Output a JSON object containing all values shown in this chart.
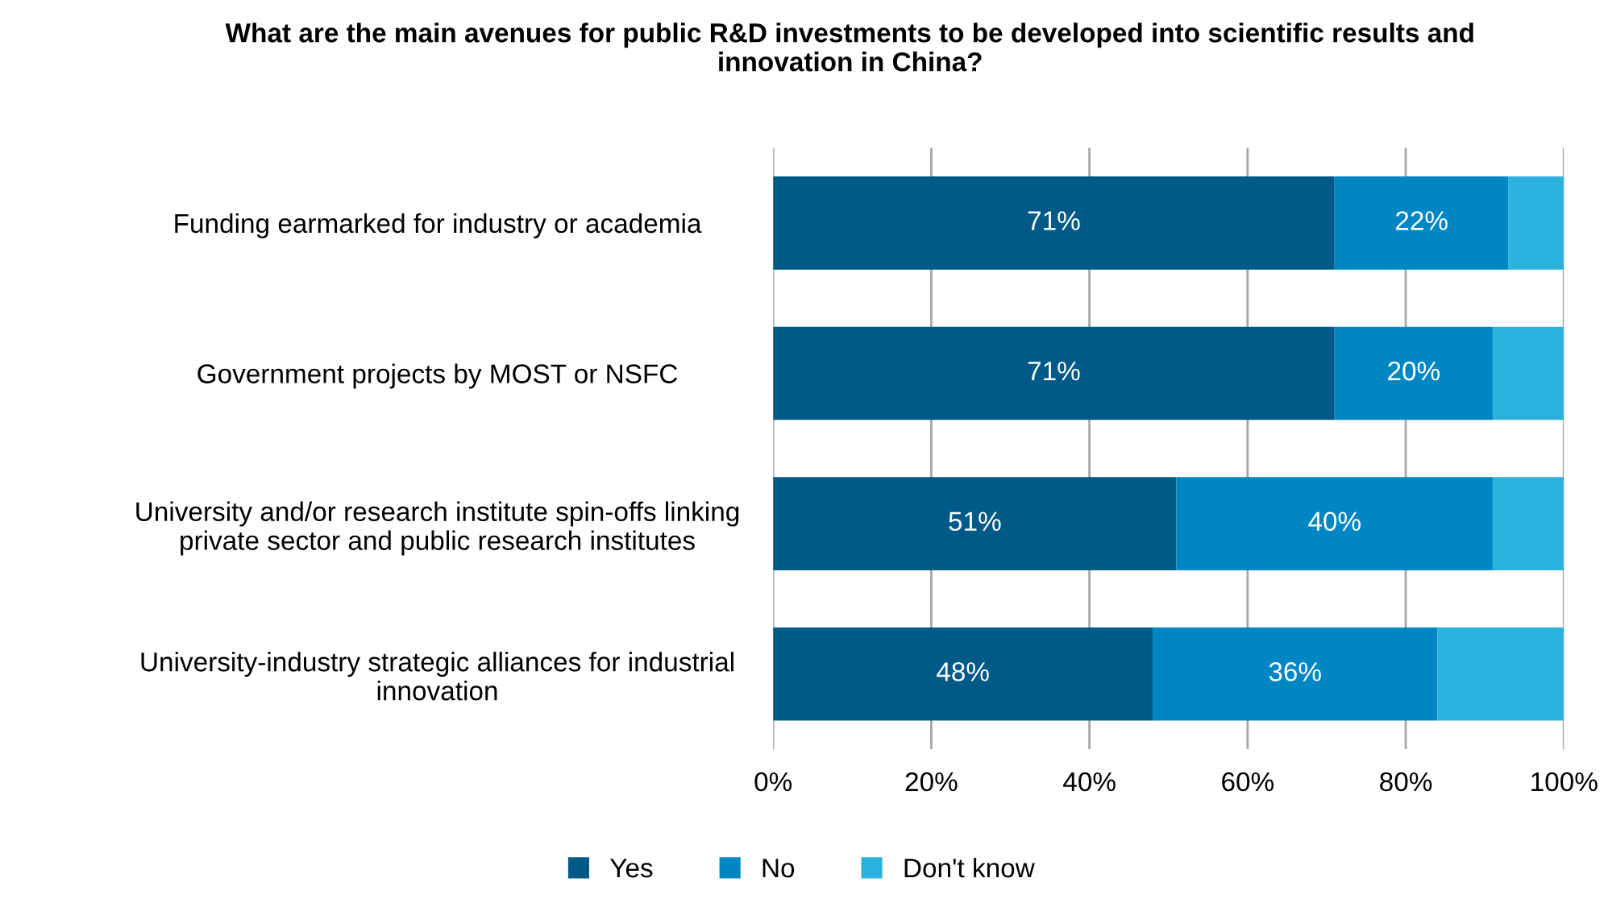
{
  "chart_data": {
    "type": "bar",
    "orientation": "horizontal",
    "stacked": true,
    "title": "What are the main avenues for public R&D investments to be developed into scientific results and\ninnovation in China?",
    "categories": [
      "Funding earmarked for industry or academia",
      "Government projects by MOST or NSFC",
      "University and/or research institute spin-offs linking\nprivate sector and public research institutes",
      "University-industry strategic alliances for industrial\ninnovation"
    ],
    "series": [
      {
        "name": "Yes",
        "color": "#005a87",
        "values": [
          71,
          71,
          51,
          48
        ],
        "value_labels": [
          "71%",
          "71%",
          "51%",
          "48%"
        ]
      },
      {
        "name": "No",
        "color": "#0087c3",
        "values": [
          22,
          20,
          40,
          36
        ],
        "value_labels": [
          "22%",
          "20%",
          "40%",
          "36%"
        ]
      },
      {
        "name": "Don't know",
        "color": "#2cb0dc",
        "values": [
          7,
          9,
          9,
          16
        ]
      }
    ],
    "xlim": [
      0,
      100
    ],
    "xticks": [
      {
        "value": 0,
        "label": "0%"
      },
      {
        "value": 20,
        "label": "20%"
      },
      {
        "value": 40,
        "label": "40%"
      },
      {
        "value": 60,
        "label": "60%"
      },
      {
        "value": 80,
        "label": "80%"
      },
      {
        "value": 100,
        "label": "100%"
      }
    ],
    "grid": "x",
    "legend": "bottom"
  }
}
